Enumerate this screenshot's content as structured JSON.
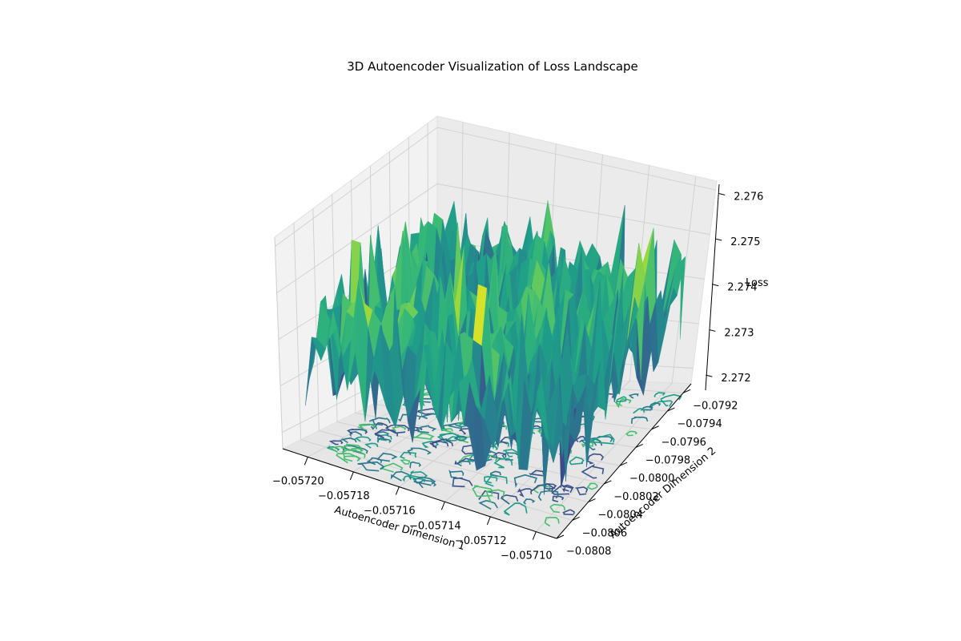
{
  "chart_data": {
    "type": "surface3d",
    "title": "3D Autoencoder Visualization of Loss Landscape",
    "xlabel": "Autoencoder Dimension 1",
    "ylabel": "Autoencoder Dimension 2",
    "zlabel": "Loss",
    "xlim": [
      -0.057211,
      -0.057091
    ],
    "ylim": [
      -0.0808,
      -0.0791
    ],
    "zlim": [
      2.27165,
      2.2762
    ],
    "x_ticks": [
      -0.0572,
      -0.05718,
      -0.05716,
      -0.05714,
      -0.05712,
      -0.0571
    ],
    "x_tick_labels": [
      "−0.05720",
      "−0.05718",
      "−0.05716",
      "−0.05714",
      "−0.05712",
      "−0.05710"
    ],
    "y_ticks": [
      -0.0808,
      -0.0806,
      -0.0804,
      -0.0802,
      -0.08,
      -0.0798,
      -0.0796,
      -0.0794,
      -0.0792
    ],
    "y_tick_labels": [
      "−0.0808",
      "−0.0806",
      "−0.0804",
      "−0.0802",
      "−0.0800",
      "−0.0798",
      "−0.0796",
      "−0.0794",
      "−0.0792"
    ],
    "z_ticks": [
      2.272,
      2.273,
      2.274,
      2.275,
      2.276
    ],
    "z_tick_labels": [
      "2.272",
      "2.273",
      "2.274",
      "2.275",
      "2.276"
    ],
    "surface": {
      "colormap": "viridis",
      "z_min": 2.2718,
      "z_max": 2.2759,
      "grid_size": [
        30,
        30
      ],
      "base_level": 2.2738,
      "noise_amplitude": 0.0012
    },
    "contour_offset": "floor",
    "grid": true
  }
}
